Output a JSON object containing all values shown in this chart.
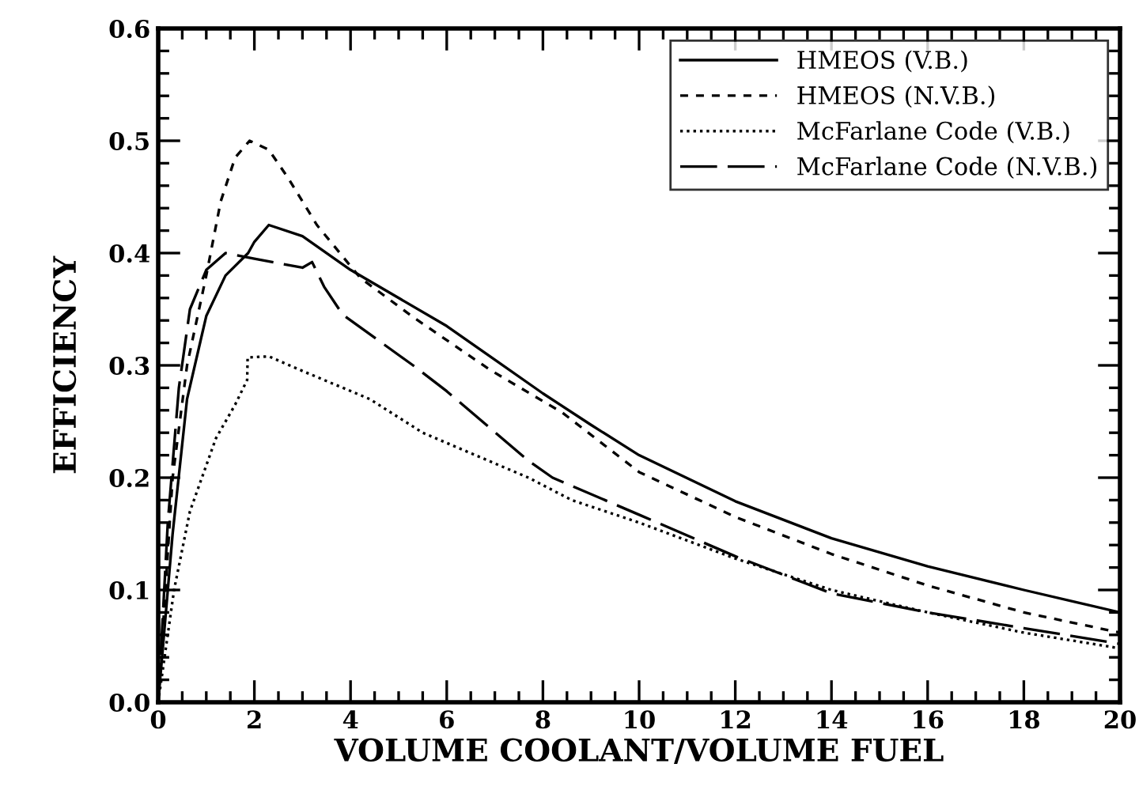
{
  "chart_data": {
    "type": "line",
    "xlabel": "VOLUME COOLANT/VOLUME FUEL",
    "ylabel": "EFFICIENCY",
    "xlim": [
      0,
      20
    ],
    "ylim": [
      0,
      0.6
    ],
    "xticks": [
      0,
      2,
      4,
      6,
      8,
      10,
      12,
      14,
      16,
      18,
      20
    ],
    "yticks": [
      {
        "value": 0,
        "label": "0.0"
      },
      0.1,
      0.2,
      0.3,
      0.4,
      0.5,
      0.6
    ],
    "grid": false,
    "legend": "top right",
    "marker": "none",
    "series": [
      {
        "name": "HMEOS (V.B.)",
        "color": "#000000",
        "line_style": "solid",
        "x": [
          0,
          0.3,
          0.6,
          1.0,
          1.4,
          1.87,
          2.0,
          2.3,
          3.0,
          4.0,
          5.0,
          6.0,
          7.0,
          8.0,
          9.0,
          10,
          12,
          14,
          16,
          18,
          20
        ],
        "values": [
          0,
          0.15,
          0.27,
          0.344,
          0.38,
          0.4,
          0.41,
          0.425,
          0.415,
          0.385,
          0.36,
          0.335,
          0.305,
          0.275,
          0.247,
          0.22,
          0.179,
          0.146,
          0.121,
          0.1,
          0.08
        ]
      },
      {
        "name": "HMEOS (N.V.B.)",
        "color": "#000000",
        "line_style": "dashed",
        "x": [
          0,
          0.3,
          0.6,
          1.0,
          1.3,
          1.6,
          1.9,
          2.3,
          2.7,
          3.3,
          4.2,
          5.3,
          6.9,
          8.4,
          10,
          12,
          14,
          16,
          18,
          20
        ],
        "values": [
          0,
          0.2,
          0.3,
          0.38,
          0.446,
          0.485,
          0.5,
          0.492,
          0.467,
          0.425,
          0.378,
          0.343,
          0.296,
          0.258,
          0.205,
          0.165,
          0.132,
          0.104,
          0.08,
          0.062
        ]
      },
      {
        "name": "McFarlane Code (V.B.)",
        "color": "#000000",
        "line_style": "dotted",
        "x": [
          0,
          0.33,
          0.66,
          1.2,
          1.6,
          1.85,
          1.86,
          2.3,
          3.0,
          4.4,
          5.5,
          7.7,
          8.6,
          10,
          12,
          14,
          16,
          18,
          20
        ],
        "values": [
          0,
          0.1,
          0.17,
          0.235,
          0.265,
          0.287,
          0.307,
          0.308,
          0.295,
          0.27,
          0.24,
          0.2,
          0.18,
          0.16,
          0.128,
          0.1,
          0.08,
          0.062,
          0.048
        ]
      },
      {
        "name": "McFarlane Code (N.V.B.)",
        "color": "#000000",
        "line_style": "dashed",
        "x": [
          0,
          0.2,
          0.43,
          0.66,
          1.0,
          1.4,
          2.0,
          3.0,
          3.2,
          3.45,
          3.84,
          5.3,
          6.0,
          7.7,
          8.2,
          10,
          12,
          14,
          16,
          18,
          20
        ],
        "values": [
          0,
          0.16,
          0.28,
          0.35,
          0.385,
          0.4,
          0.395,
          0.387,
          0.392,
          0.37,
          0.345,
          0.3,
          0.277,
          0.215,
          0.2,
          0.167,
          0.13,
          0.097,
          0.08,
          0.066,
          0.052
        ]
      }
    ]
  }
}
